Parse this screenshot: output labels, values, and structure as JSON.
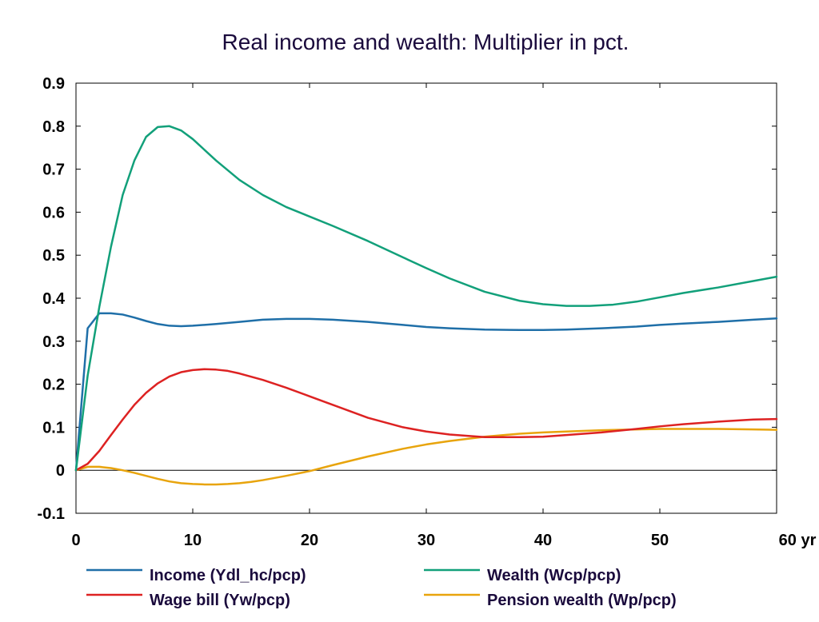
{
  "chart_data": {
    "type": "line",
    "title": "Real income and wealth: Multiplier in pct.",
    "x_unit_label": "yr",
    "xlim": [
      0,
      60
    ],
    "ylim": [
      -0.1,
      0.9
    ],
    "x_ticks": [
      0,
      10,
      20,
      30,
      40,
      50,
      60
    ],
    "x_tick_labels": [
      "0",
      "10",
      "20",
      "30",
      "40",
      "50",
      "60 yr"
    ],
    "y_ticks": [
      -0.1,
      0,
      0.1,
      0.2,
      0.3,
      0.4,
      0.5,
      0.6,
      0.7,
      0.8,
      0.9
    ],
    "y_tick_labels": [
      "-0.1",
      "0",
      "0.1",
      "0.2",
      "0.3",
      "0.4",
      "0.5",
      "0.6",
      "0.7",
      "0.8",
      "0.9"
    ],
    "zero_line": true,
    "grid": false,
    "legend_position": "bottom",
    "series": [
      {
        "name": "Income (Ydl_hc/pcp)",
        "color": "#1f6fa8",
        "x": [
          0,
          1,
          2,
          3,
          4,
          5,
          6,
          7,
          8,
          9,
          10,
          12,
          14,
          16,
          18,
          20,
          22,
          25,
          28,
          30,
          32,
          35,
          38,
          40,
          42,
          45,
          48,
          50,
          52,
          55,
          58,
          60
        ],
        "y": [
          0,
          0.33,
          0.365,
          0.365,
          0.362,
          0.355,
          0.347,
          0.34,
          0.336,
          0.335,
          0.336,
          0.34,
          0.345,
          0.35,
          0.352,
          0.352,
          0.35,
          0.345,
          0.338,
          0.333,
          0.33,
          0.327,
          0.326,
          0.326,
          0.327,
          0.33,
          0.334,
          0.338,
          0.341,
          0.345,
          0.35,
          0.353
        ]
      },
      {
        "name": "Wealth (Wcp/pcp)",
        "color": "#12a07a",
        "x": [
          0,
          1,
          2,
          3,
          4,
          5,
          6,
          7,
          8,
          9,
          10,
          12,
          14,
          16,
          18,
          20,
          22,
          25,
          28,
          30,
          32,
          35,
          38,
          40,
          42,
          44,
          46,
          48,
          50,
          52,
          55,
          58,
          60
        ],
        "y": [
          0,
          0.22,
          0.38,
          0.52,
          0.64,
          0.72,
          0.775,
          0.798,
          0.8,
          0.79,
          0.77,
          0.72,
          0.675,
          0.64,
          0.612,
          0.59,
          0.568,
          0.533,
          0.495,
          0.47,
          0.446,
          0.415,
          0.394,
          0.386,
          0.382,
          0.382,
          0.385,
          0.392,
          0.402,
          0.412,
          0.425,
          0.44,
          0.45
        ]
      },
      {
        "name": "Wage bill (Yw/pcp)",
        "color": "#dd2222",
        "x": [
          0,
          1,
          2,
          3,
          4,
          5,
          6,
          7,
          8,
          9,
          10,
          11,
          12,
          13,
          14,
          16,
          18,
          20,
          22,
          25,
          28,
          30,
          32,
          35,
          38,
          40,
          42,
          45,
          48,
          50,
          52,
          55,
          58,
          60
        ],
        "y": [
          0,
          0.015,
          0.045,
          0.082,
          0.118,
          0.152,
          0.18,
          0.202,
          0.218,
          0.228,
          0.233,
          0.235,
          0.234,
          0.231,
          0.225,
          0.21,
          0.192,
          0.172,
          0.152,
          0.122,
          0.1,
          0.09,
          0.083,
          0.077,
          0.077,
          0.078,
          0.082,
          0.088,
          0.096,
          0.102,
          0.107,
          0.113,
          0.118,
          0.119
        ]
      },
      {
        "name": "Pension wealth (Wp/pcp)",
        "color": "#e8a40c",
        "x": [
          0,
          1,
          2,
          3,
          4,
          5,
          6,
          7,
          8,
          9,
          10,
          11,
          12,
          13,
          14,
          15,
          16,
          18,
          20,
          22,
          25,
          28,
          30,
          32,
          35,
          38,
          40,
          42,
          45,
          48,
          50,
          52,
          55,
          58,
          60
        ],
        "y": [
          0,
          0.008,
          0.008,
          0.005,
          0.0,
          -0.006,
          -0.013,
          -0.02,
          -0.026,
          -0.03,
          -0.032,
          -0.033,
          -0.033,
          -0.032,
          -0.03,
          -0.027,
          -0.023,
          -0.013,
          -0.002,
          0.012,
          0.032,
          0.05,
          0.06,
          0.068,
          0.078,
          0.085,
          0.088,
          0.09,
          0.093,
          0.095,
          0.096,
          0.096,
          0.096,
          0.095,
          0.094
        ]
      }
    ]
  }
}
